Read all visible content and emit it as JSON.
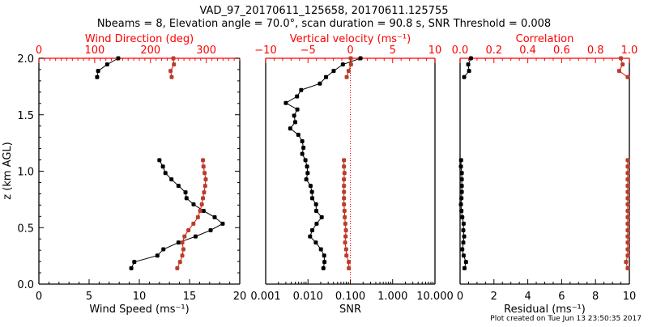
{
  "title": "VAD_97_20170611_125658, 20170611.125755",
  "subtitle": "Nbeams = 8, Elevation angle = 70.0°, scan duration = 90.8 s, SNR Threshold = 0.008",
  "footer": "Plot created on Tue Jun 13 23:50:35 2017",
  "colors": {
    "axis_red": "#ff0000",
    "marker_red": "#b4402c",
    "black": "#000000"
  },
  "chart_data": [
    {
      "type": "line",
      "ylabel": "z (km AGL)",
      "ylim": [
        0,
        2
      ],
      "yticks": [
        "0.0",
        "0.5",
        "1.0",
        "1.5",
        "2.0"
      ],
      "xlabel": "Wind Speed (ms⁻¹)",
      "xlim": [
        0,
        20
      ],
      "xticks": [
        "0",
        "5",
        "10",
        "15",
        "20"
      ],
      "x2label": "Wind Direction (deg)",
      "x2lim": [
        0,
        360
      ],
      "x2ticks": [
        "0",
        "100",
        "200",
        "300"
      ],
      "series": [
        {
          "name": "Wind Speed",
          "axis": "bottom",
          "color": "#000000",
          "z": [
            2.0,
            1.945,
            1.888,
            1.833,
            1.098,
            1.041,
            0.984,
            0.927,
            0.87,
            0.813,
            0.761,
            0.706,
            0.649,
            0.592,
            0.535,
            0.477,
            0.422,
            0.368,
            0.308,
            0.253,
            0.196,
            0.141
          ],
          "values": [
            7.9,
            6.8,
            5.9,
            5.8,
            12.0,
            12.35,
            12.6,
            13.2,
            13.9,
            14.6,
            14.7,
            15.4,
            16.4,
            17.5,
            18.3,
            17.1,
            15.6,
            13.9,
            12.4,
            11.8,
            9.5,
            9.2
          ]
        },
        {
          "name": "Wind Direction",
          "axis": "top",
          "color": "#b4402c",
          "z": [
            2.0,
            1.945,
            1.888,
            1.833,
            1.098,
            1.041,
            0.984,
            0.927,
            0.87,
            0.813,
            0.761,
            0.706,
            0.649,
            0.592,
            0.535,
            0.477,
            0.422,
            0.368,
            0.308,
            0.253,
            0.196,
            0.141
          ],
          "values": [
            241,
            242,
            236,
            238,
            294,
            295,
            297,
            299,
            298,
            296,
            294,
            292,
            289,
            285,
            277,
            268,
            261,
            257,
            259,
            257,
            253,
            248
          ]
        }
      ]
    },
    {
      "type": "line",
      "xlabel": "SNR",
      "xscale": "log",
      "xlim": [
        0.001,
        10
      ],
      "xticks": [
        "0.001",
        "0.010",
        "0.100",
        "1.000",
        "10.000"
      ],
      "x2label": "Vertical velocity (ms⁻¹)",
      "x2lim": [
        -10,
        10
      ],
      "x2ticks": [
        "−10",
        "−5",
        "0",
        "5",
        "10"
      ],
      "series": [
        {
          "name": "SNR",
          "axis": "bottom",
          "color": "#000000",
          "z": [
            2.0,
            1.945,
            1.888,
            1.833,
            1.776,
            1.719,
            1.662,
            1.604,
            1.547,
            1.492,
            1.435,
            1.378,
            1.323,
            1.265,
            1.208,
            1.153,
            1.098,
            1.041,
            0.984,
            0.927,
            0.87,
            0.816,
            0.761,
            0.706,
            0.649,
            0.592,
            0.535,
            0.477,
            0.422,
            0.368,
            0.308,
            0.253,
            0.196,
            0.141
          ],
          "values": [
            0.174,
            0.0667,
            0.0404,
            0.0267,
            0.0191,
            0.0069,
            0.0055,
            0.003,
            0.0056,
            0.0047,
            0.005,
            0.0038,
            0.0059,
            0.0073,
            0.0078,
            0.0073,
            0.0087,
            0.0095,
            0.0098,
            0.0091,
            0.0115,
            0.0124,
            0.0126,
            0.0155,
            0.0157,
            0.0211,
            0.016,
            0.0126,
            0.0112,
            0.0153,
            0.0202,
            0.0241,
            0.0245,
            0.0231
          ]
        },
        {
          "name": "Vertical velocity",
          "axis": "top",
          "color": "#b4402c",
          "z": [
            2.0,
            1.945,
            1.888,
            1.833,
            1.098,
            1.041,
            0.984,
            0.927,
            0.87,
            0.816,
            0.761,
            0.706,
            0.649,
            0.592,
            0.535,
            0.477,
            0.422,
            0.368,
            0.308,
            0.253,
            0.196,
            0.141
          ],
          "values": [
            0.05,
            0.08,
            -0.2,
            -0.43,
            -0.75,
            -0.75,
            -0.69,
            -0.75,
            -0.75,
            -0.75,
            -0.75,
            -0.75,
            -0.69,
            -0.66,
            -0.59,
            -0.52,
            -0.56,
            -0.62,
            -0.5,
            -0.46,
            -0.18,
            -0.18
          ]
        }
      ],
      "reference_line": {
        "axis": "top",
        "value": 0,
        "style": "dotted"
      }
    },
    {
      "type": "line",
      "xlabel": "Residual (ms⁻¹)",
      "xlim": [
        0,
        10
      ],
      "xticks": [
        "0",
        "2",
        "4",
        "6",
        "8",
        "10"
      ],
      "x2label": "Correlation",
      "x2lim": [
        0,
        1
      ],
      "x2ticks": [
        "0.0",
        "0.2",
        "0.4",
        "0.6",
        "0.8",
        "1.0"
      ],
      "series": [
        {
          "name": "Residual",
          "axis": "bottom",
          "color": "#000000",
          "z": [
            2.0,
            1.945,
            1.888,
            1.833,
            1.098,
            1.041,
            0.984,
            0.927,
            0.87,
            0.816,
            0.761,
            0.706,
            0.649,
            0.592,
            0.535,
            0.477,
            0.422,
            0.368,
            0.308,
            0.253,
            0.196,
            0.141
          ],
          "values": [
            0.64,
            0.48,
            0.53,
            0.24,
            0.06,
            0.05,
            0.1,
            0.1,
            0.1,
            0.1,
            0.08,
            0.05,
            0.08,
            0.13,
            0.21,
            0.19,
            0.24,
            0.19,
            0.13,
            0.21,
            0.35,
            0.26
          ]
        },
        {
          "name": "Correlation",
          "axis": "top",
          "color": "#b4402c",
          "z": [
            2.0,
            1.945,
            1.888,
            1.833,
            1.098,
            1.041,
            0.984,
            0.927,
            0.87,
            0.816,
            0.761,
            0.706,
            0.649,
            0.592,
            0.535,
            0.477,
            0.422,
            0.368,
            0.308,
            0.253,
            0.196,
            0.141
          ],
          "values": [
            0.95,
            0.96,
            0.94,
            0.99,
            0.99,
            0.99,
            0.99,
            0.99,
            0.99,
            0.99,
            0.99,
            0.99,
            0.99,
            0.99,
            0.99,
            0.99,
            0.99,
            0.99,
            0.99,
            0.99,
            0.98,
            0.99
          ]
        }
      ]
    }
  ]
}
